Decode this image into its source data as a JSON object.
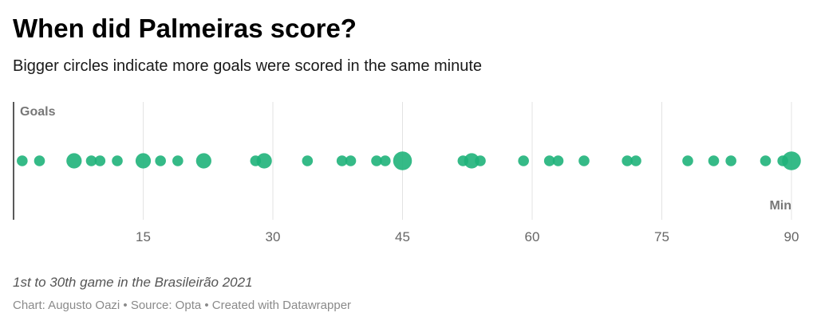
{
  "chart_data": {
    "type": "scatter",
    "title": "When did Palmeiras score?",
    "subtitle": "Bigger circles indicate more goals were scored in the same minute",
    "ylabel": "Goals",
    "xlabel": "Min",
    "xlim": [
      0,
      90
    ],
    "xticks": [
      15,
      30,
      45,
      60,
      75,
      90
    ],
    "grid": true,
    "marker_color": "#1fb37a",
    "points": [
      {
        "x": 1,
        "goals": 1
      },
      {
        "x": 3,
        "goals": 1
      },
      {
        "x": 7,
        "goals": 2
      },
      {
        "x": 9,
        "goals": 1
      },
      {
        "x": 10,
        "goals": 1
      },
      {
        "x": 12,
        "goals": 1
      },
      {
        "x": 15,
        "goals": 2
      },
      {
        "x": 17,
        "goals": 1
      },
      {
        "x": 19,
        "goals": 1
      },
      {
        "x": 22,
        "goals": 2
      },
      {
        "x": 28,
        "goals": 1
      },
      {
        "x": 29,
        "goals": 2
      },
      {
        "x": 34,
        "goals": 1
      },
      {
        "x": 38,
        "goals": 1
      },
      {
        "x": 39,
        "goals": 1
      },
      {
        "x": 42,
        "goals": 1
      },
      {
        "x": 43,
        "goals": 1
      },
      {
        "x": 45,
        "goals": 3
      },
      {
        "x": 52,
        "goals": 1
      },
      {
        "x": 53,
        "goals": 2
      },
      {
        "x": 54,
        "goals": 1
      },
      {
        "x": 59,
        "goals": 1
      },
      {
        "x": 62,
        "goals": 1
      },
      {
        "x": 63,
        "goals": 1
      },
      {
        "x": 66,
        "goals": 1
      },
      {
        "x": 71,
        "goals": 1
      },
      {
        "x": 72,
        "goals": 1
      },
      {
        "x": 78,
        "goals": 1
      },
      {
        "x": 81,
        "goals": 1
      },
      {
        "x": 83,
        "goals": 1
      },
      {
        "x": 87,
        "goals": 1
      },
      {
        "x": 89,
        "goals": 1
      },
      {
        "x": 90,
        "goals": 3
      }
    ]
  },
  "notes": "1st to 30th game in the Brasileirão 2021",
  "credits": "Chart: Augusto Oazi • Source: Opta • Created with Datawrapper"
}
